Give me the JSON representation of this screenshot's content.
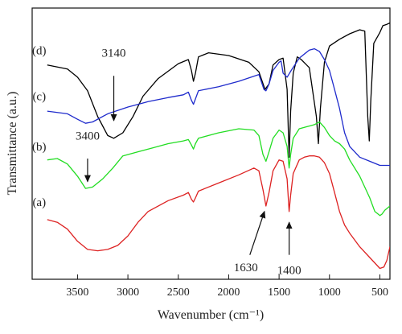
{
  "chart_data": {
    "type": "line",
    "xlabel": "Wavenumber (cm⁻¹)",
    "ylabel": "Transmittance (a.u.)",
    "xlim": [
      3950,
      400
    ],
    "ylim": [
      0,
      100
    ],
    "x_ticks": [
      3500,
      3000,
      2500,
      2000,
      1500,
      1000,
      500
    ],
    "x_reversed": true,
    "grid": false,
    "series": [
      {
        "name": "(d)",
        "color": "#000000",
        "points": [
          [
            3800,
            79.0
          ],
          [
            3600,
            77.5
          ],
          [
            3500,
            74.5
          ],
          [
            3400,
            69.5
          ],
          [
            3300,
            60.0
          ],
          [
            3200,
            53.0
          ],
          [
            3140,
            52.0
          ],
          [
            3050,
            54.0
          ],
          [
            2950,
            60.0
          ],
          [
            2850,
            67.5
          ],
          [
            2700,
            74.0
          ],
          [
            2500,
            79.5
          ],
          [
            2400,
            81.0
          ],
          [
            2370,
            77.0
          ],
          [
            2350,
            73.0
          ],
          [
            2330,
            76.0
          ],
          [
            2300,
            82.0
          ],
          [
            2200,
            83.5
          ],
          [
            2000,
            82.5
          ],
          [
            1800,
            80.0
          ],
          [
            1700,
            76.5
          ],
          [
            1640,
            70.0
          ],
          [
            1600,
            72.0
          ],
          [
            1560,
            79.0
          ],
          [
            1500,
            81.0
          ],
          [
            1460,
            81.5
          ],
          [
            1420,
            70.0
          ],
          [
            1400,
            45.0
          ],
          [
            1385,
            62.0
          ],
          [
            1360,
            76.0
          ],
          [
            1320,
            82.0
          ],
          [
            1280,
            81.0
          ],
          [
            1200,
            78.0
          ],
          [
            1130,
            60.0
          ],
          [
            1110,
            50.0
          ],
          [
            1090,
            63.0
          ],
          [
            1050,
            80.0
          ],
          [
            1000,
            86.0
          ],
          [
            900,
            88.5
          ],
          [
            800,
            90.5
          ],
          [
            700,
            92.0
          ],
          [
            650,
            91.5
          ],
          [
            620,
            60.0
          ],
          [
            605,
            51.0
          ],
          [
            590,
            66.0
          ],
          [
            560,
            87.0
          ],
          [
            500,
            91.0
          ],
          [
            470,
            93.5
          ],
          [
            430,
            94.0
          ],
          [
            400,
            94.5
          ]
        ]
      },
      {
        "name": "(c)",
        "color": "#1f2bcc",
        "points": [
          [
            3800,
            62.0
          ],
          [
            3600,
            61.0
          ],
          [
            3500,
            59.0
          ],
          [
            3420,
            57.5
          ],
          [
            3350,
            58.0
          ],
          [
            3200,
            61.0
          ],
          [
            3000,
            63.5
          ],
          [
            2800,
            65.5
          ],
          [
            2600,
            67.0
          ],
          [
            2450,
            68.0
          ],
          [
            2400,
            69.0
          ],
          [
            2370,
            66.0
          ],
          [
            2350,
            64.5
          ],
          [
            2330,
            66.5
          ],
          [
            2300,
            69.5
          ],
          [
            2100,
            71.0
          ],
          [
            1900,
            73.0
          ],
          [
            1700,
            75.5
          ],
          [
            1650,
            70.0
          ],
          [
            1630,
            69.5
          ],
          [
            1600,
            72.0
          ],
          [
            1560,
            77.0
          ],
          [
            1500,
            80.0
          ],
          [
            1480,
            80.5
          ],
          [
            1460,
            76.0
          ],
          [
            1420,
            74.5
          ],
          [
            1380,
            77.0
          ],
          [
            1300,
            81.5
          ],
          [
            1200,
            84.5
          ],
          [
            1150,
            85.0
          ],
          [
            1100,
            84.0
          ],
          [
            1050,
            81.0
          ],
          [
            1000,
            77.0
          ],
          [
            950,
            70.0
          ],
          [
            900,
            63.0
          ],
          [
            850,
            54.0
          ],
          [
            800,
            49.0
          ],
          [
            700,
            45.0
          ],
          [
            600,
            43.5
          ],
          [
            500,
            42.0
          ],
          [
            450,
            42.0
          ],
          [
            400,
            42.0
          ]
        ]
      },
      {
        "name": "(b)",
        "color": "#22dd22",
        "points": [
          [
            3800,
            44.0
          ],
          [
            3700,
            44.5
          ],
          [
            3600,
            42.5
          ],
          [
            3500,
            38.0
          ],
          [
            3420,
            33.5
          ],
          [
            3350,
            34.0
          ],
          [
            3250,
            37.0
          ],
          [
            3150,
            41.0
          ],
          [
            3050,
            45.5
          ],
          [
            2900,
            47.0
          ],
          [
            2750,
            48.5
          ],
          [
            2600,
            50.0
          ],
          [
            2450,
            51.0
          ],
          [
            2400,
            51.5
          ],
          [
            2370,
            49.5
          ],
          [
            2350,
            48.0
          ],
          [
            2330,
            50.0
          ],
          [
            2300,
            52.0
          ],
          [
            2100,
            54.0
          ],
          [
            1900,
            55.5
          ],
          [
            1750,
            55.0
          ],
          [
            1700,
            53.0
          ],
          [
            1660,
            46.0
          ],
          [
            1630,
            43.5
          ],
          [
            1600,
            47.0
          ],
          [
            1560,
            52.0
          ],
          [
            1500,
            55.0
          ],
          [
            1460,
            54.0
          ],
          [
            1420,
            49.0
          ],
          [
            1400,
            41.0
          ],
          [
            1385,
            46.0
          ],
          [
            1360,
            52.0
          ],
          [
            1300,
            55.5
          ],
          [
            1200,
            56.5
          ],
          [
            1150,
            57.0
          ],
          [
            1100,
            58.0
          ],
          [
            1050,
            56.0
          ],
          [
            1000,
            53.0
          ],
          [
            950,
            51.0
          ],
          [
            900,
            50.0
          ],
          [
            850,
            48.0
          ],
          [
            800,
            44.0
          ],
          [
            700,
            38.0
          ],
          [
            600,
            30.0
          ],
          [
            550,
            25.0
          ],
          [
            500,
            23.5
          ],
          [
            480,
            24.0
          ],
          [
            450,
            25.5
          ],
          [
            400,
            27.0
          ]
        ]
      },
      {
        "name": "(a)",
        "color": "#dd2222",
        "points": [
          [
            3800,
            22.0
          ],
          [
            3700,
            21.0
          ],
          [
            3600,
            18.5
          ],
          [
            3500,
            14.0
          ],
          [
            3400,
            11.0
          ],
          [
            3300,
            10.5
          ],
          [
            3200,
            11.0
          ],
          [
            3100,
            12.5
          ],
          [
            3000,
            16.0
          ],
          [
            2900,
            21.0
          ],
          [
            2800,
            25.0
          ],
          [
            2600,
            29.0
          ],
          [
            2450,
            31.0
          ],
          [
            2400,
            32.0
          ],
          [
            2370,
            29.5
          ],
          [
            2350,
            28.5
          ],
          [
            2330,
            30.0
          ],
          [
            2300,
            32.5
          ],
          [
            2100,
            35.5
          ],
          [
            1900,
            38.5
          ],
          [
            1750,
            41.0
          ],
          [
            1700,
            40.0
          ],
          [
            1660,
            33.0
          ],
          [
            1630,
            27.0
          ],
          [
            1600,
            32.0
          ],
          [
            1560,
            40.0
          ],
          [
            1500,
            44.0
          ],
          [
            1460,
            43.5
          ],
          [
            1420,
            37.0
          ],
          [
            1400,
            25.0
          ],
          [
            1385,
            31.0
          ],
          [
            1360,
            39.0
          ],
          [
            1300,
            44.0
          ],
          [
            1250,
            45.0
          ],
          [
            1200,
            45.5
          ],
          [
            1150,
            45.5
          ],
          [
            1100,
            45.0
          ],
          [
            1050,
            43.0
          ],
          [
            1000,
            39.0
          ],
          [
            950,
            32.0
          ],
          [
            900,
            25.0
          ],
          [
            850,
            20.0
          ],
          [
            800,
            17.0
          ],
          [
            700,
            12.0
          ],
          [
            600,
            8.0
          ],
          [
            500,
            4.0
          ],
          [
            460,
            4.5
          ],
          [
            430,
            7.0
          ],
          [
            400,
            12.0
          ]
        ]
      }
    ],
    "curve_tags": [
      {
        "text": "(d)",
        "x": 3880,
        "y": 83.0
      },
      {
        "text": "(c)",
        "x": 3880,
        "y": 66.0
      },
      {
        "text": "(b)",
        "x": 3880,
        "y": 47.5
      },
      {
        "text": "(a)",
        "x": 3880,
        "y": 27.0
      }
    ],
    "annotations": [
      {
        "text": "3140",
        "tx": 3140,
        "ty": 82.0,
        "from": [
          3140,
          75.0
        ],
        "to": [
          3140,
          58.5
        ]
      },
      {
        "text": "3400",
        "tx": 3400,
        "ty": 51.5,
        "from": [
          3400,
          44.5
        ],
        "to": [
          3400,
          36.0
        ]
      },
      {
        "text": "1630",
        "tx": 1830,
        "ty": 3.0,
        "from": [
          1790,
          9.0
        ],
        "to": [
          1645,
          25.0
        ]
      },
      {
        "text": "1400",
        "tx": 1400,
        "ty": 2.0,
        "from": [
          1400,
          9.0
        ],
        "to": [
          1400,
          21.0
        ]
      }
    ]
  }
}
